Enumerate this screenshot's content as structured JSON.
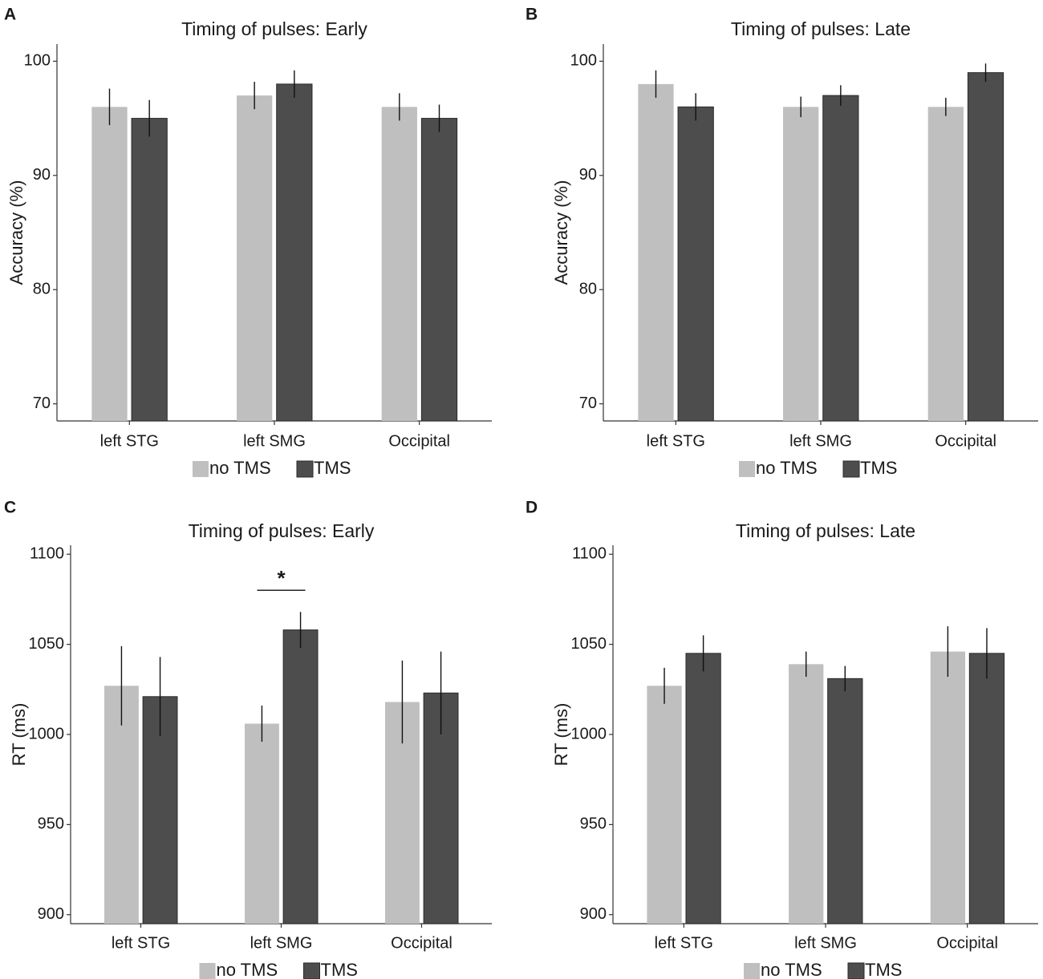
{
  "chart_data": [
    {
      "panel": "A",
      "type": "bar",
      "title": "Timing of pulses: Early",
      "xlabel": "",
      "ylabel": "Accuracy (%)",
      "ylim": [
        68.5,
        101.5
      ],
      "yticks": [
        70,
        80,
        90,
        100
      ],
      "categories": [
        "left STG",
        "left SMG",
        "Occipital"
      ],
      "series": [
        {
          "name": "no TMS",
          "color": "#bfbfbf",
          "values": [
            96,
            97,
            96
          ],
          "errors": [
            1.6,
            1.2,
            1.2
          ]
        },
        {
          "name": "TMS",
          "color": "#4d4d4d",
          "values": [
            95,
            98,
            95
          ],
          "errors": [
            1.6,
            1.2,
            1.2
          ]
        }
      ],
      "legend": "bottom",
      "annotations": []
    },
    {
      "panel": "B",
      "type": "bar",
      "title": "Timing of pulses: Late",
      "xlabel": "",
      "ylabel": "Accuracy (%)",
      "ylim": [
        68.5,
        101.5
      ],
      "yticks": [
        70,
        80,
        90,
        100
      ],
      "categories": [
        "left STG",
        "left SMG",
        "Occipital"
      ],
      "series": [
        {
          "name": "no TMS",
          "color": "#bfbfbf",
          "values": [
            98,
            96,
            96
          ],
          "errors": [
            1.2,
            0.9,
            0.8
          ]
        },
        {
          "name": "TMS",
          "color": "#4d4d4d",
          "values": [
            96,
            97,
            99
          ],
          "errors": [
            1.2,
            0.9,
            0.8
          ]
        }
      ],
      "legend": "bottom",
      "annotations": []
    },
    {
      "panel": "C",
      "type": "bar",
      "title": "Timing of pulses: Early",
      "xlabel": "",
      "ylabel": "RT (ms)",
      "ylim": [
        895,
        1105
      ],
      "yticks": [
        900,
        950,
        1000,
        1050,
        1100
      ],
      "categories": [
        "left STG",
        "left SMG",
        "Occipital"
      ],
      "series": [
        {
          "name": "no TMS",
          "color": "#bfbfbf",
          "values": [
            1027,
            1006,
            1018
          ],
          "errors": [
            22,
            10,
            23
          ]
        },
        {
          "name": "TMS",
          "color": "#4d4d4d",
          "values": [
            1021,
            1058,
            1023
          ],
          "errors": [
            22,
            10,
            23
          ]
        }
      ],
      "legend": "bottom",
      "annotations": [
        {
          "text": "*",
          "category": "left SMG",
          "y": 1080
        }
      ]
    },
    {
      "panel": "D",
      "type": "bar",
      "title": "Timing of pulses: Late",
      "xlabel": "",
      "ylabel": "RT (ms)",
      "ylim": [
        895,
        1105
      ],
      "yticks": [
        900,
        950,
        1000,
        1050,
        1100
      ],
      "categories": [
        "left STG",
        "left SMG",
        "Occipital"
      ],
      "series": [
        {
          "name": "no TMS",
          "color": "#bfbfbf",
          "values": [
            1027,
            1039,
            1046
          ],
          "errors": [
            10,
            7,
            14
          ]
        },
        {
          "name": "TMS",
          "color": "#4d4d4d",
          "values": [
            1045,
            1031,
            1045
          ],
          "errors": [
            10,
            7,
            14
          ]
        }
      ],
      "legend": "bottom",
      "annotations": []
    }
  ]
}
